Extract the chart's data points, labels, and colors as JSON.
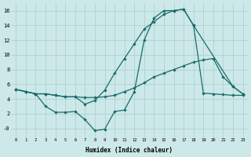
{
  "xlabel": "Humidex (Indice chaleur)",
  "background_color": "#cce8e8",
  "grid_color": "#aacccc",
  "line_color": "#1a6b6b",
  "xlim": [
    -0.5,
    23.5
  ],
  "ylim": [
    -1.2,
    17
  ],
  "xticks": [
    0,
    1,
    2,
    3,
    4,
    5,
    6,
    7,
    8,
    9,
    10,
    11,
    12,
    13,
    14,
    15,
    16,
    17,
    18,
    19,
    20,
    21,
    22,
    23
  ],
  "ytick_vals": [
    0,
    2,
    4,
    6,
    8,
    10,
    12,
    14,
    16
  ],
  "ytick_labels": [
    "-0",
    "2",
    "4",
    "6",
    "8",
    "10",
    "12",
    "14",
    "16"
  ],
  "line1_x": [
    0,
    1,
    2,
    3,
    4,
    5,
    6,
    7,
    8,
    9,
    10,
    11,
    12,
    13,
    14,
    15,
    16,
    17,
    18,
    19,
    20,
    21,
    22,
    23
  ],
  "line1_y": [
    5.3,
    5.0,
    4.7,
    4.7,
    4.5,
    4.3,
    4.3,
    4.2,
    4.2,
    4.3,
    4.5,
    5.0,
    5.5,
    6.2,
    7.0,
    7.5,
    8.0,
    8.5,
    9.0,
    9.3,
    9.5,
    7.0,
    5.7,
    4.7
  ],
  "line2_x": [
    0,
    1,
    2,
    3,
    4,
    5,
    6,
    7,
    8,
    9,
    10,
    11,
    12,
    13,
    14,
    15,
    16,
    17,
    18,
    22,
    23
  ],
  "line2_y": [
    5.3,
    5.0,
    4.7,
    3.0,
    2.2,
    2.2,
    2.3,
    1.2,
    -0.3,
    -0.1,
    2.3,
    2.5,
    5.0,
    12.0,
    15.0,
    16.0,
    16.0,
    16.2,
    14.0,
    5.7,
    4.7
  ],
  "line3_x": [
    0,
    1,
    2,
    3,
    4,
    5,
    6,
    7,
    8,
    9,
    10,
    11,
    12,
    13,
    14,
    15,
    16,
    17,
    18,
    19,
    20,
    21,
    22,
    23
  ],
  "line3_y": [
    5.3,
    5.0,
    4.7,
    4.7,
    4.5,
    4.3,
    4.3,
    3.3,
    3.8,
    5.2,
    7.5,
    9.5,
    11.5,
    13.5,
    14.5,
    15.5,
    16.0,
    16.2,
    14.0,
    4.8,
    4.7,
    4.6,
    4.5,
    4.5
  ]
}
